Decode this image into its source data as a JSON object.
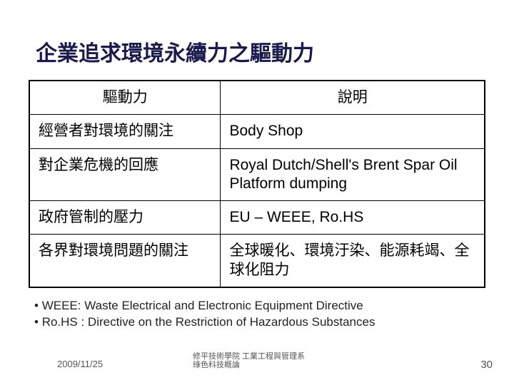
{
  "title": "企業追求環境永續力之驅動力",
  "table": {
    "headers": [
      "驅動力",
      "說明"
    ],
    "rows": [
      [
        "經營者對環境的關注",
        "Body Shop"
      ],
      [
        "對企業危機的回應",
        "Royal Dutch/Shell's Brent Spar Oil Platform dumping"
      ],
      [
        "政府管制的壓力",
        "EU – WEEE, Ro.HS"
      ],
      [
        "各界對環境問題的關注",
        "全球暖化、環境汙染、能源耗竭、全球化阻力"
      ]
    ],
    "col_widths": [
      "42%",
      "58%"
    ],
    "border_color": "#000000",
    "font_size": 21
  },
  "notes": [
    "WEEE: Waste Electrical and Electronic Equipment Directive",
    "Ro.HS : Directive on the Restriction of Hazardous Substances"
  ],
  "footer": {
    "date": "2009/11/25",
    "small": "修平技術學院 工業工程與管理系\n綠色科技概論",
    "page": "30"
  },
  "styling": {
    "background_color": "#ffffff",
    "title_color": "#1a1a4d",
    "title_fontsize": 30,
    "body_fontsize": 21,
    "notes_fontsize": 17,
    "footer_fontsize": 13
  }
}
